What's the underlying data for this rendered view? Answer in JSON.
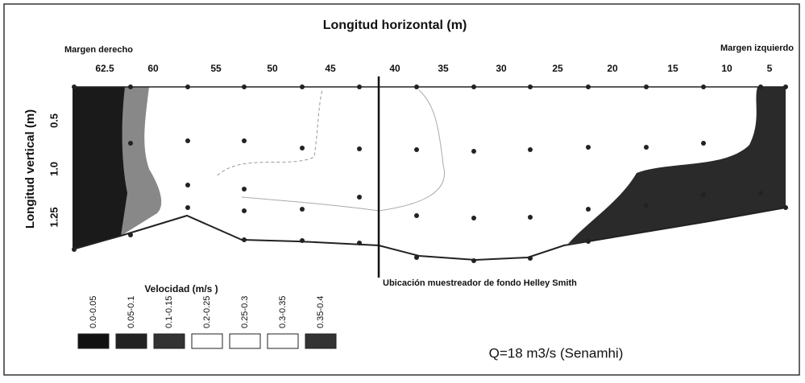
{
  "header": {
    "title": "Longitud horizontal (m)",
    "left_margin": "Margen derecho",
    "right_margin": "Margen izquierdo"
  },
  "x_labels": [
    "62.5",
    "60",
    "55",
    "50",
    "45",
    "40",
    "35",
    "30",
    "25",
    "20",
    "15",
    "10",
    "5"
  ],
  "y_axis": {
    "title": "Longitud vertical (m)",
    "labels": [
      "0.5",
      "1.0",
      "1.25"
    ]
  },
  "annotation": "Ubicación muestreador de fondo Helley Smith",
  "legend": {
    "title": "Velocidad (m/s )",
    "items": [
      "0.0-0.05",
      "0.05-0.1",
      "0.1-0.15",
      "0.2-0.25",
      "0.25-0.3",
      "0.3-0.35",
      "0.35-0.4"
    ]
  },
  "discharge": "Q=18 m3/s (Senamhi)"
}
